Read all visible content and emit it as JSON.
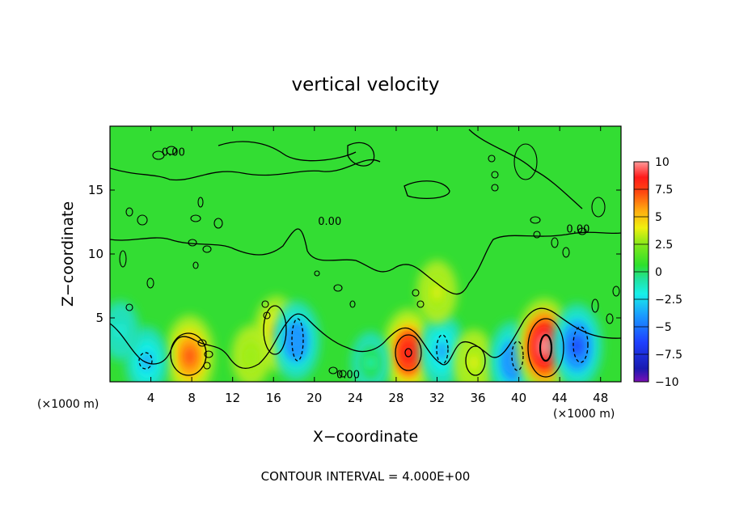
{
  "chart_data": {
    "type": "heatmap",
    "title": "vertical velocity",
    "xlabel": "X−coordinate",
    "ylabel": "Z−coordinate",
    "x_unit_left": "(×1000 m)",
    "x_unit_right": "(×1000 m)",
    "xlim": [
      0,
      50
    ],
    "ylim": [
      0,
      20
    ],
    "x_ticks": [
      4,
      8,
      12,
      16,
      20,
      24,
      28,
      32,
      36,
      40,
      44,
      48
    ],
    "y_ticks": [
      5,
      10,
      15
    ],
    "colorbar": {
      "min": -10,
      "max": 10,
      "ticks": [
        "10",
        "7.5",
        "5",
        "2.5",
        "0",
        "−2.5",
        "−5",
        "−7.5",
        "−10"
      ],
      "tick_values": [
        10,
        7.5,
        5,
        2.5,
        0,
        -2.5,
        -5,
        -7.5,
        -10
      ]
    },
    "contour_labels": [
      {
        "text": "0.00",
        "x": 6.2,
        "y": 18.0
      },
      {
        "text": "0.00",
        "x": 21.5,
        "y": 12.6
      },
      {
        "text": "0.00",
        "x": 45.8,
        "y": 12.0
      },
      {
        "text": "0.00",
        "x": 23.3,
        "y": 0.6
      }
    ],
    "features": [
      {
        "kind": "updraft",
        "x": 7.8,
        "z": 2.0,
        "peak": 6.5
      },
      {
        "kind": "downdraft",
        "x": 3.6,
        "z": 1.6,
        "peak": -4.0
      },
      {
        "kind": "updraft",
        "x": 16.3,
        "z": 3.8,
        "peak": 5.0
      },
      {
        "kind": "downdraft",
        "x": 18.2,
        "z": 3.2,
        "peak": -6.0
      },
      {
        "kind": "updraft",
        "x": 29.2,
        "z": 2.3,
        "peak": 7.5
      },
      {
        "kind": "downdraft",
        "x": 32.5,
        "z": 2.4,
        "peak": -5.0
      },
      {
        "kind": "updraft",
        "x": 35.6,
        "z": 1.5,
        "peak": 3.5
      },
      {
        "kind": "downdraft",
        "x": 39.4,
        "z": 1.6,
        "peak": -6.0
      },
      {
        "kind": "updraft",
        "x": 42.5,
        "z": 2.8,
        "peak": 9.0
      },
      {
        "kind": "downdraft",
        "x": 45.7,
        "z": 2.8,
        "peak": -7.0
      },
      {
        "kind": "updraft",
        "x": 13.8,
        "z": 2.0,
        "peak": 2.5
      },
      {
        "kind": "updraft",
        "x": 32.0,
        "z": 7.0,
        "peak": 3.0
      },
      {
        "kind": "downdraft",
        "x": 1.0,
        "z": 4.0,
        "peak": -2.0
      },
      {
        "kind": "downdraft",
        "x": 25.5,
        "z": 1.5,
        "peak": -2.5
      }
    ]
  },
  "footer": {
    "contour_interval": "CONTOUR INTERVAL = 4.000E+00"
  }
}
